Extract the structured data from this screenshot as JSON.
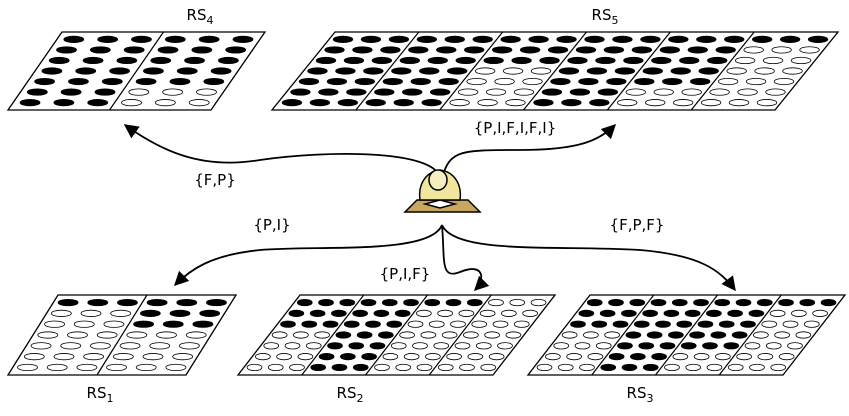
{
  "nodes": [
    {
      "label": "RS",
      "subscript": "4"
    },
    {
      "label": "RS",
      "subscript": "5"
    },
    {
      "label": "RS",
      "subscript": "1"
    },
    {
      "label": "RS",
      "subscript": "2"
    },
    {
      "label": "RS",
      "subscript": "3"
    }
  ],
  "edges": [
    {
      "label": "{F,P}"
    },
    {
      "label": "{P,I,F,I,F,I}"
    },
    {
      "label": "{P,I}"
    },
    {
      "label": "{P,I,F}"
    },
    {
      "label": "{F,P,F}"
    }
  ]
}
